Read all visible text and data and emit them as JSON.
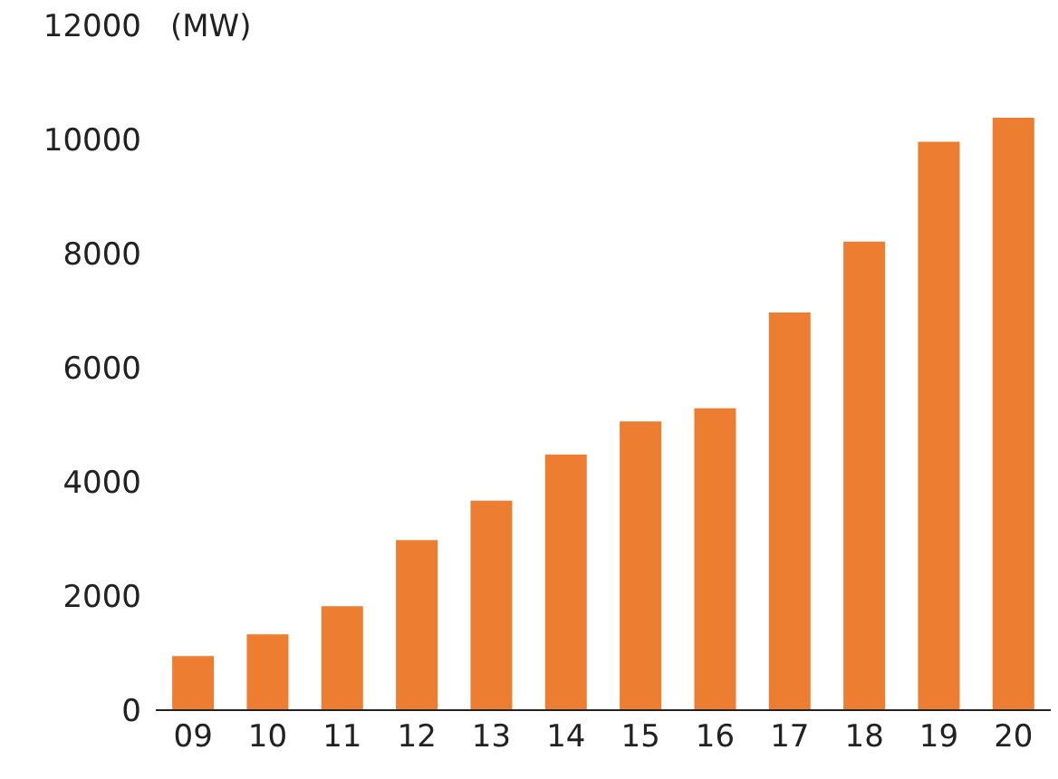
{
  "chart_data": {
    "type": "bar",
    "ylabel": "(MW)",
    "categories": [
      "09",
      "10",
      "11",
      "12",
      "13",
      "14",
      "15",
      "16",
      "17",
      "18",
      "19",
      "20"
    ],
    "values": [
      950,
      1330,
      1820,
      2980,
      3670,
      4480,
      5060,
      5290,
      6970,
      8210,
      9960,
      10380
    ],
    "color": "#ed7d31",
    "ylim": [
      0,
      12000
    ],
    "yticks": [
      0,
      2000,
      4000,
      6000,
      8000,
      10000,
      12000
    ],
    "grid": false
  }
}
